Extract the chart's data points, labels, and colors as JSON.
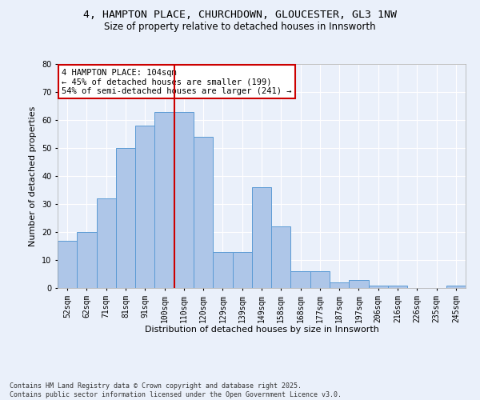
{
  "title_line1": "4, HAMPTON PLACE, CHURCHDOWN, GLOUCESTER, GL3 1NW",
  "title_line2": "Size of property relative to detached houses in Innsworth",
  "xlabel": "Distribution of detached houses by size in Innsworth",
  "ylabel": "Number of detached properties",
  "categories": [
    "52sqm",
    "62sqm",
    "71sqm",
    "81sqm",
    "91sqm",
    "100sqm",
    "110sqm",
    "120sqm",
    "129sqm",
    "139sqm",
    "149sqm",
    "158sqm",
    "168sqm",
    "177sqm",
    "187sqm",
    "197sqm",
    "206sqm",
    "216sqm",
    "226sqm",
    "235sqm",
    "245sqm"
  ],
  "values": [
    17,
    20,
    32,
    50,
    58,
    63,
    63,
    54,
    13,
    13,
    36,
    22,
    6,
    6,
    2,
    3,
    1,
    1,
    0,
    0,
    1
  ],
  "bar_color": "#aec6e8",
  "bar_edge_color": "#5b9bd5",
  "background_color": "#eaf0fa",
  "grid_color": "#ffffff",
  "vline_x": 5.5,
  "vline_color": "#cc0000",
  "annotation_text": "4 HAMPTON PLACE: 104sqm\n← 45% of detached houses are smaller (199)\n54% of semi-detached houses are larger (241) →",
  "annotation_box_color": "#cc0000",
  "ylim": [
    0,
    80
  ],
  "yticks": [
    0,
    10,
    20,
    30,
    40,
    50,
    60,
    70,
    80
  ],
  "footer_text": "Contains HM Land Registry data © Crown copyright and database right 2025.\nContains public sector information licensed under the Open Government Licence v3.0.",
  "title_fontsize": 9.5,
  "subtitle_fontsize": 8.5,
  "axis_label_fontsize": 8,
  "tick_fontsize": 7,
  "annotation_fontsize": 7.5,
  "footer_fontsize": 6
}
